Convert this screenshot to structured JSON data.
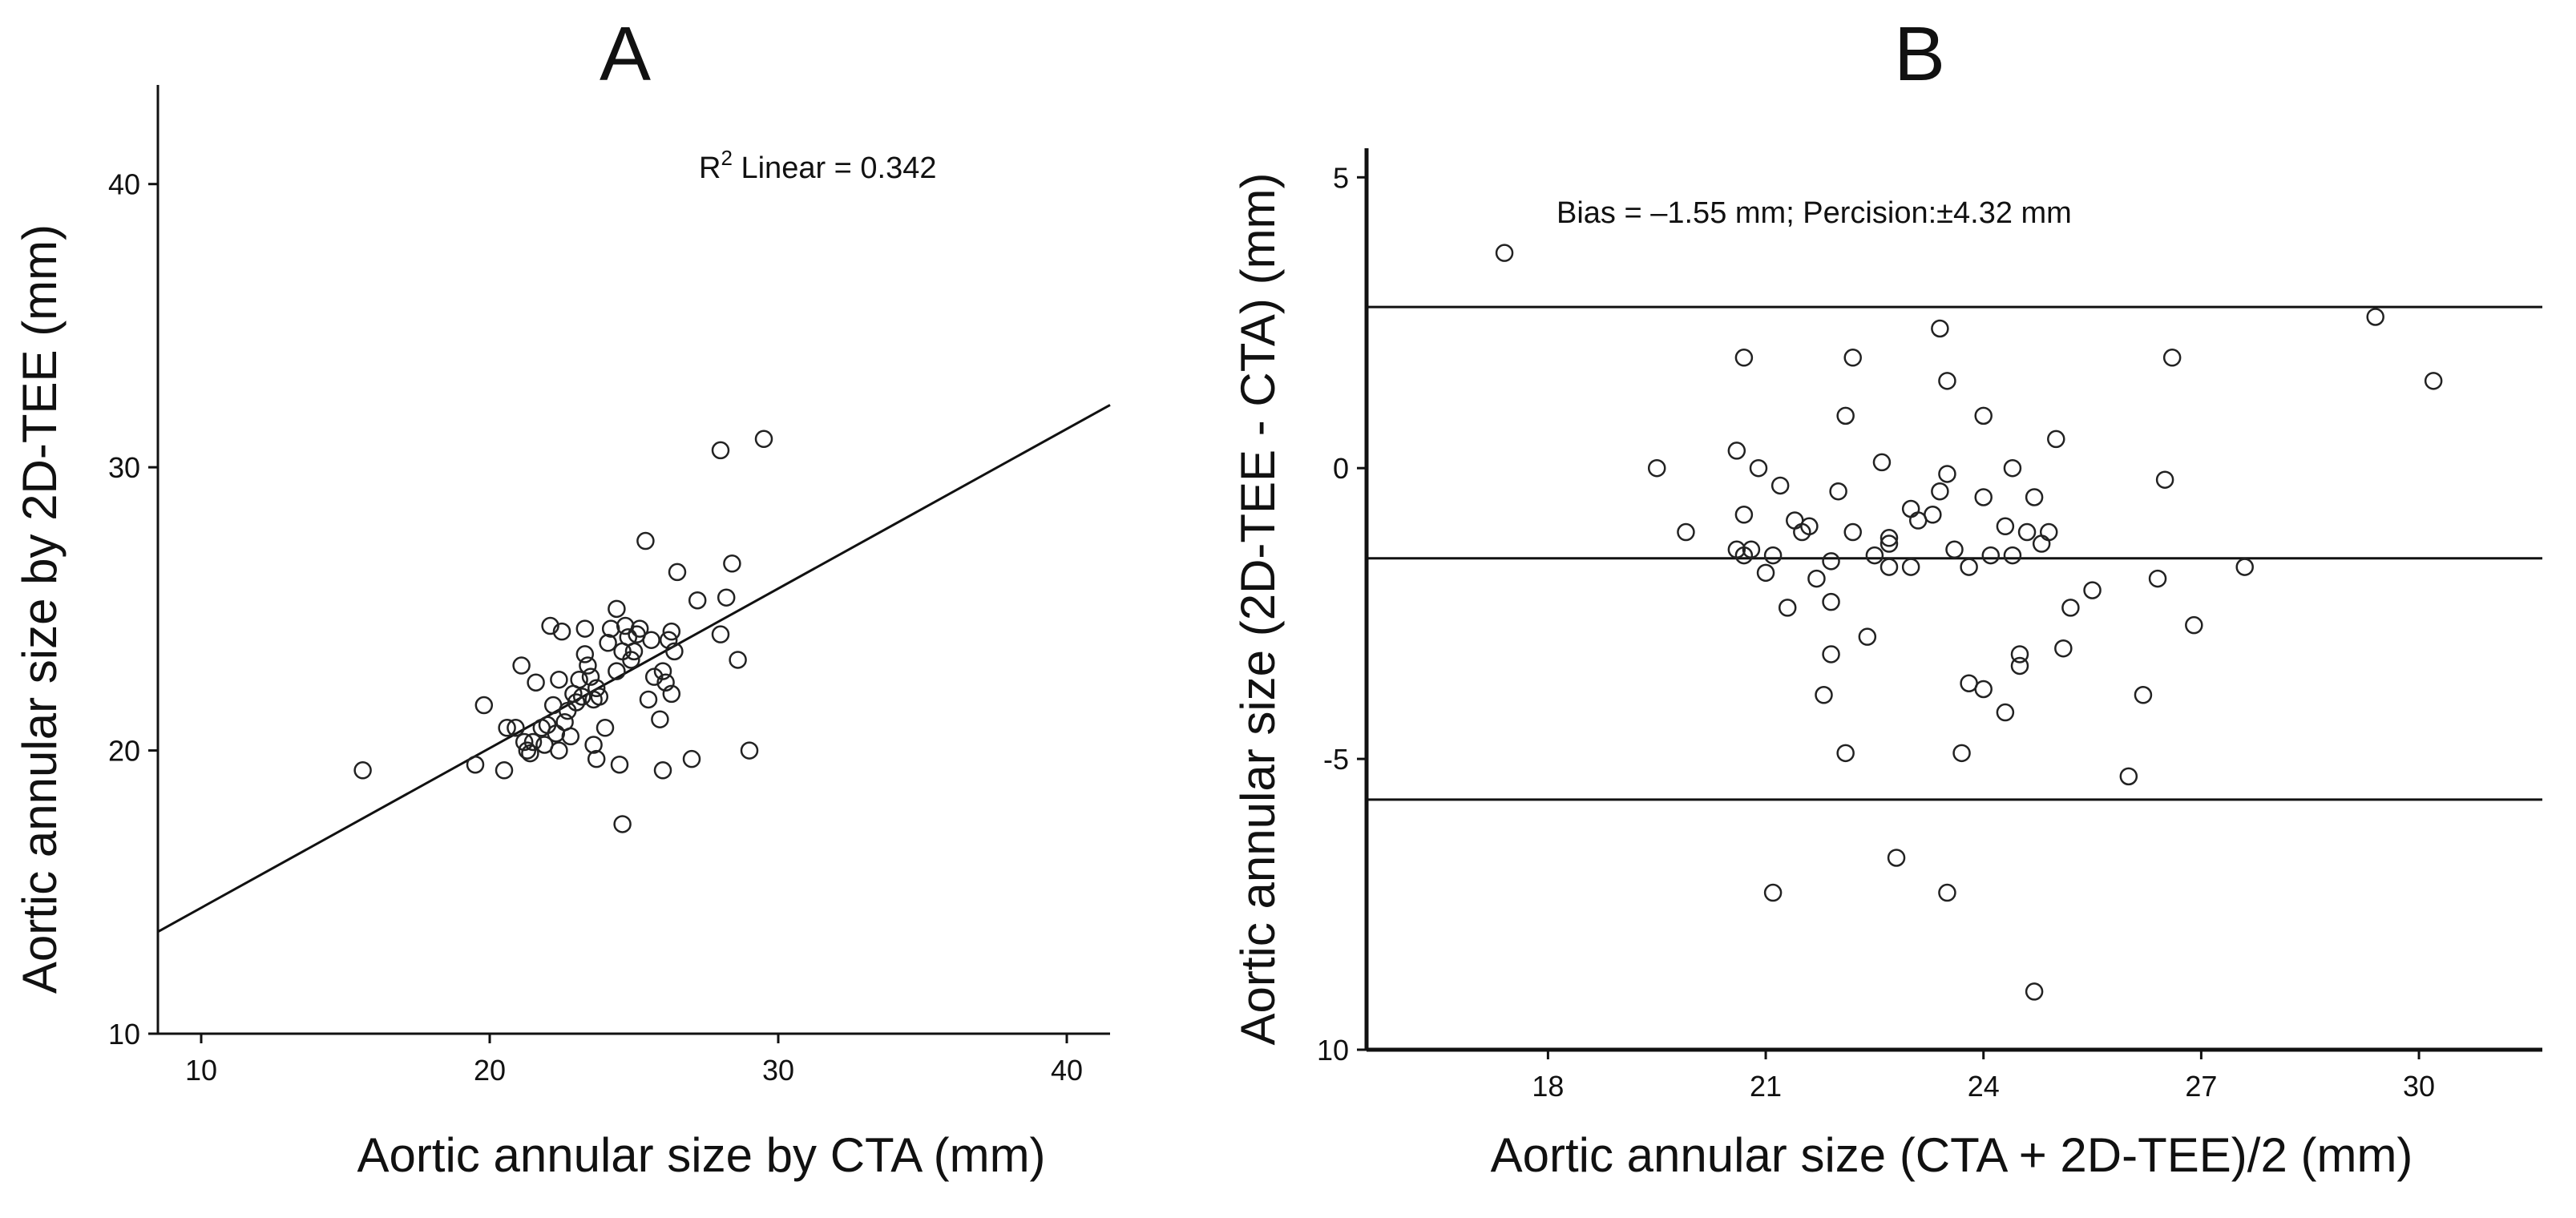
{
  "chart_data": [
    {
      "type": "scatter",
      "panel": "A",
      "title": "A",
      "xlabel": "Aortic annular size by CTA (mm)",
      "ylabel": "Aortic annular size by 2D-TEE (mm)",
      "xlim": [
        8.5,
        41.5
      ],
      "ylim": [
        10,
        43.5
      ],
      "xticks": [
        10,
        20,
        30,
        40
      ],
      "yticks": [
        10,
        20,
        30,
        40
      ],
      "annotation": {
        "prefix": "R",
        "sup": "2",
        "suffix": " Linear = 0.342"
      },
      "fit_line": {
        "x": [
          8.5,
          41.5
        ],
        "y": [
          13.6,
          32.2
        ]
      },
      "points": [
        [
          15.6,
          19.3
        ],
        [
          19.5,
          19.5
        ],
        [
          19.8,
          21.6
        ],
        [
          20.5,
          19.3
        ],
        [
          20.6,
          20.8
        ],
        [
          20.9,
          20.8
        ],
        [
          21.1,
          23.0
        ],
        [
          21.2,
          20.3
        ],
        [
          21.3,
          20.0
        ],
        [
          21.4,
          19.9
        ],
        [
          21.5,
          20.3
        ],
        [
          21.6,
          22.4
        ],
        [
          21.8,
          20.8
        ],
        [
          21.9,
          20.2
        ],
        [
          22.0,
          20.9
        ],
        [
          22.1,
          24.4
        ],
        [
          22.2,
          21.6
        ],
        [
          22.3,
          20.6
        ],
        [
          22.4,
          22.5
        ],
        [
          22.5,
          24.2
        ],
        [
          22.4,
          20.0
        ],
        [
          22.6,
          21.0
        ],
        [
          22.7,
          21.4
        ],
        [
          22.8,
          20.5
        ],
        [
          22.9,
          22.0
        ],
        [
          23.0,
          21.7
        ],
        [
          23.1,
          22.5
        ],
        [
          23.2,
          21.9
        ],
        [
          23.3,
          24.3
        ],
        [
          23.3,
          23.4
        ],
        [
          23.4,
          23.0
        ],
        [
          23.5,
          22.6
        ],
        [
          23.6,
          21.8
        ],
        [
          23.6,
          20.2
        ],
        [
          23.7,
          19.7
        ],
        [
          23.8,
          21.9
        ],
        [
          23.7,
          22.2
        ],
        [
          24.0,
          20.8
        ],
        [
          24.1,
          23.8
        ],
        [
          24.2,
          24.3
        ],
        [
          24.4,
          25.0
        ],
        [
          24.4,
          22.8
        ],
        [
          24.5,
          19.5
        ],
        [
          24.6,
          23.5
        ],
        [
          24.6,
          17.4
        ],
        [
          24.7,
          24.4
        ],
        [
          24.8,
          24.0
        ],
        [
          24.9,
          23.2
        ],
        [
          25.0,
          23.5
        ],
        [
          25.1,
          24.1
        ],
        [
          25.2,
          24.3
        ],
        [
          25.4,
          27.4
        ],
        [
          25.5,
          21.8
        ],
        [
          25.6,
          23.9
        ],
        [
          25.7,
          22.6
        ],
        [
          25.9,
          21.1
        ],
        [
          26.0,
          19.3
        ],
        [
          26.0,
          22.8
        ],
        [
          26.1,
          22.4
        ],
        [
          26.2,
          23.9
        ],
        [
          26.3,
          24.2
        ],
        [
          26.4,
          23.5
        ],
        [
          26.5,
          26.3
        ],
        [
          26.3,
          22.0
        ],
        [
          27.0,
          19.7
        ],
        [
          27.2,
          25.3
        ],
        [
          28.0,
          30.6
        ],
        [
          28.0,
          24.1
        ],
        [
          28.2,
          25.4
        ],
        [
          28.4,
          26.6
        ],
        [
          28.6,
          23.2
        ],
        [
          29.0,
          20.0
        ],
        [
          29.5,
          31.0
        ]
      ]
    },
    {
      "type": "scatter",
      "panel": "B",
      "title": "B",
      "xlabel": "Aortic annular size (CTA + 2D-TEE)/2 (mm)",
      "ylabel": "Aortic annular size (2D-TEE - CTA) (mm)",
      "xlim": [
        15.5,
        31.7
      ],
      "ylim": [
        -10,
        5.5
      ],
      "xticks": [
        18,
        21,
        24,
        27,
        30
      ],
      "yticks": [
        5,
        0,
        -5,
        10
      ],
      "ytick_labels": [
        "5",
        "0",
        "-5",
        "10"
      ],
      "annotation": "Bias = –1.55 mm; Percision:±4.32 mm",
      "reference_lines": [
        2.77,
        -1.55,
        -5.7
      ],
      "points": [
        [
          17.4,
          3.7
        ],
        [
          19.5,
          0.0
        ],
        [
          19.9,
          -1.1
        ],
        [
          20.6,
          0.3
        ],
        [
          20.6,
          -1.4
        ],
        [
          20.7,
          -1.5
        ],
        [
          20.7,
          -0.8
        ],
        [
          20.7,
          1.9
        ],
        [
          20.8,
          -1.4
        ],
        [
          20.9,
          0.0
        ],
        [
          21.0,
          -1.8
        ],
        [
          21.1,
          -1.5
        ],
        [
          21.1,
          -7.3
        ],
        [
          21.2,
          -0.3
        ],
        [
          21.3,
          -2.4
        ],
        [
          21.4,
          -0.9
        ],
        [
          21.5,
          -1.1
        ],
        [
          21.6,
          -1.0
        ],
        [
          21.7,
          -1.9
        ],
        [
          21.8,
          -3.9
        ],
        [
          21.9,
          -1.6
        ],
        [
          21.9,
          -2.3
        ],
        [
          21.9,
          -3.2
        ],
        [
          22.0,
          -0.4
        ],
        [
          22.1,
          0.9
        ],
        [
          22.1,
          -4.9
        ],
        [
          22.2,
          1.9
        ],
        [
          22.2,
          -1.1
        ],
        [
          22.4,
          -2.9
        ],
        [
          22.5,
          -1.5
        ],
        [
          22.6,
          0.1
        ],
        [
          22.7,
          -1.3
        ],
        [
          22.7,
          -1.2
        ],
        [
          22.7,
          -1.7
        ],
        [
          22.8,
          -6.7
        ],
        [
          23.0,
          -0.7
        ],
        [
          23.0,
          -1.7
        ],
        [
          23.1,
          -0.9
        ],
        [
          23.3,
          -0.8
        ],
        [
          23.4,
          2.4
        ],
        [
          23.4,
          -0.4
        ],
        [
          23.5,
          1.5
        ],
        [
          23.5,
          -0.1
        ],
        [
          23.5,
          -7.3
        ],
        [
          23.6,
          -1.4
        ],
        [
          23.7,
          -4.9
        ],
        [
          23.8,
          -1.7
        ],
        [
          23.8,
          -3.7
        ],
        [
          24.0,
          -0.5
        ],
        [
          24.0,
          0.9
        ],
        [
          24.0,
          -3.8
        ],
        [
          24.1,
          -1.5
        ],
        [
          24.3,
          -4.2
        ],
        [
          24.3,
          -1.0
        ],
        [
          24.4,
          -1.5
        ],
        [
          24.4,
          0.0
        ],
        [
          24.5,
          -3.4
        ],
        [
          24.5,
          -3.2
        ],
        [
          24.6,
          -1.1
        ],
        [
          24.7,
          -0.5
        ],
        [
          24.7,
          -9.0
        ],
        [
          24.8,
          -1.3
        ],
        [
          24.9,
          -1.1
        ],
        [
          25.0,
          0.5
        ],
        [
          25.1,
          -3.1
        ],
        [
          25.2,
          -2.4
        ],
        [
          25.5,
          -2.1
        ],
        [
          26.0,
          -5.3
        ],
        [
          26.2,
          -3.9
        ],
        [
          26.4,
          -1.9
        ],
        [
          26.5,
          -0.2
        ],
        [
          26.6,
          1.9
        ],
        [
          26.9,
          -2.7
        ],
        [
          27.6,
          -1.7
        ],
        [
          29.4,
          2.6
        ],
        [
          30.2,
          1.5
        ]
      ]
    }
  ]
}
